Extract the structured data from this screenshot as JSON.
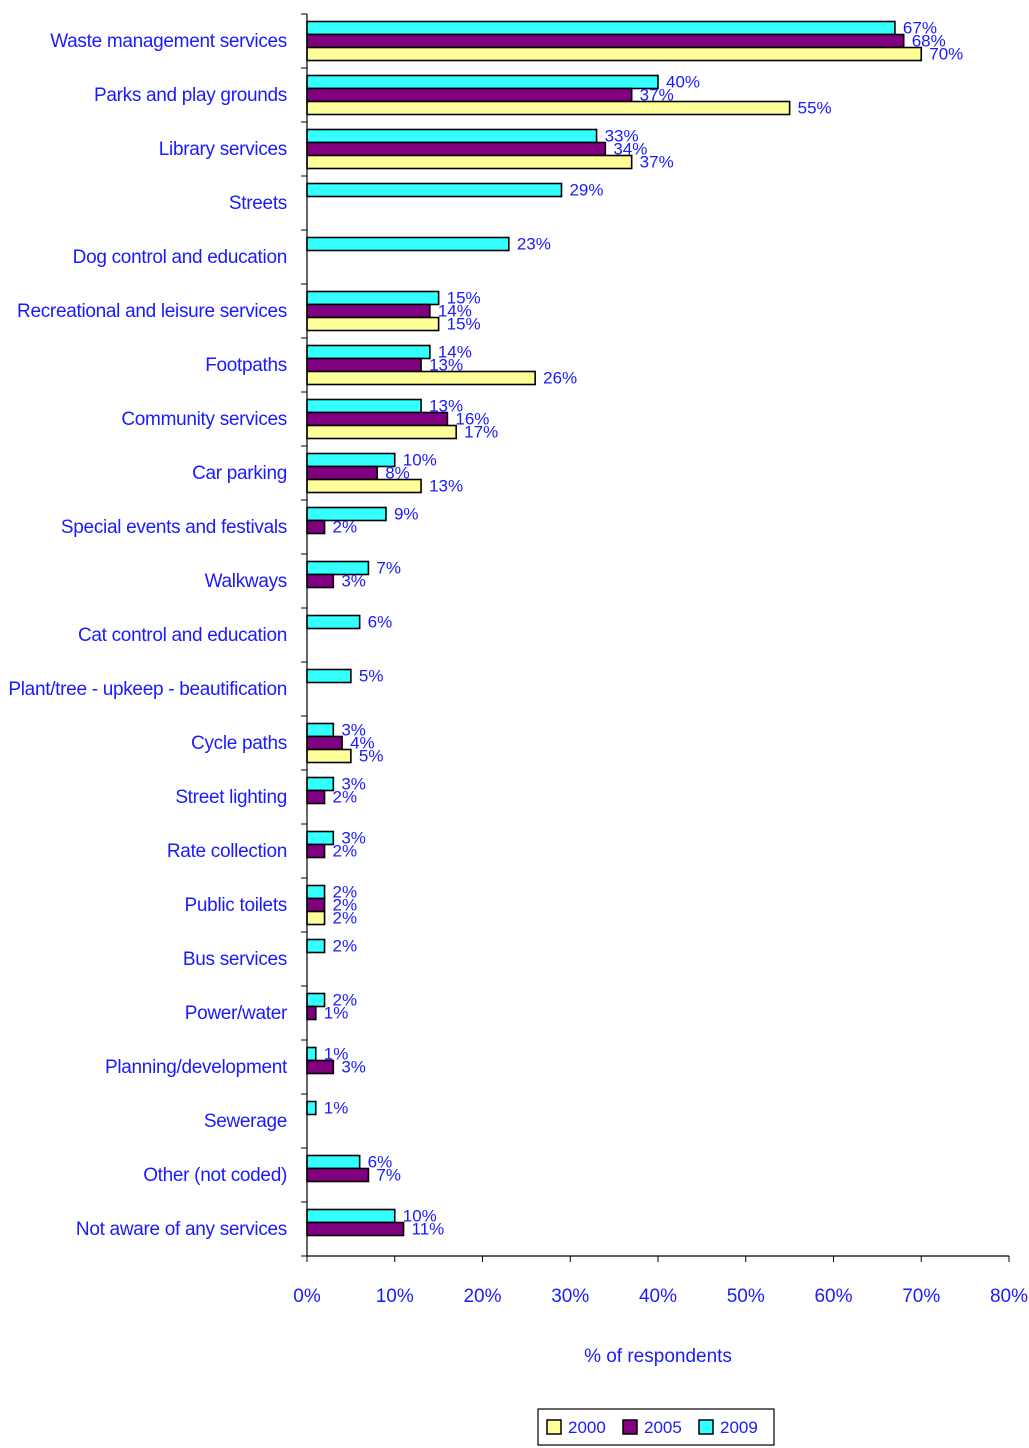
{
  "chart_data": {
    "type": "bar",
    "orientation": "horizontal",
    "title": "",
    "xlabel": "%  of respondents",
    "ylabel": "",
    "xlim": [
      0,
      80
    ],
    "x_ticks": [
      0,
      10,
      20,
      30,
      40,
      50,
      60,
      70,
      80
    ],
    "tick_suffix": "%",
    "value_suffix": "%",
    "grid": false,
    "legend_position": "bottom",
    "categories": [
      "Waste management services",
      "Parks and play grounds",
      "Library services",
      "Streets",
      "Dog control and education",
      "Recreational and leisure services",
      "Footpaths",
      "Community services",
      "Car parking",
      "Special events and festivals",
      "Walkways",
      "Cat control and education",
      "Plant/tree - upkeep - beautification",
      "Cycle paths",
      "Street lighting",
      "Rate collection",
      "Public toilets",
      "Bus services",
      "Power/water",
      "Planning/development",
      "Sewerage",
      "Other (not coded)",
      "Not aware of any services"
    ],
    "series": [
      {
        "name": "2000",
        "color": "#ffff99",
        "values": [
          70,
          55,
          37,
          null,
          null,
          15,
          26,
          17,
          13,
          null,
          null,
          null,
          null,
          5,
          null,
          null,
          2,
          null,
          null,
          null,
          null,
          null,
          null
        ]
      },
      {
        "name": "2005",
        "color": "#800080",
        "values": [
          68,
          37,
          34,
          null,
          null,
          14,
          13,
          16,
          8,
          2,
          3,
          null,
          null,
          4,
          2,
          2,
          2,
          null,
          1,
          3,
          null,
          7,
          11
        ]
      },
      {
        "name": "2009",
        "color": "#33ffff",
        "values": [
          67,
          40,
          33,
          29,
          23,
          15,
          14,
          13,
          10,
          9,
          7,
          6,
          5,
          3,
          3,
          3,
          2,
          2,
          2,
          1,
          1,
          6,
          10
        ]
      }
    ],
    "colors": {
      "text": "#1a1aff",
      "bar_outline": "#000000",
      "axis": "#000000"
    }
  }
}
